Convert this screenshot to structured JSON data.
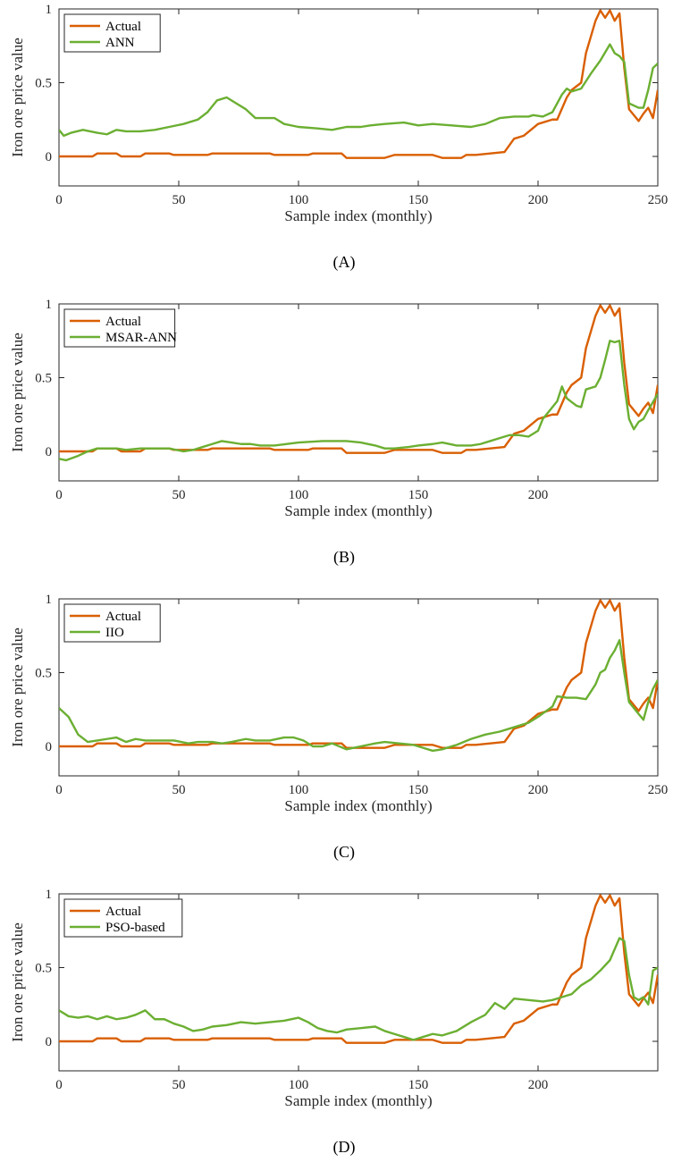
{
  "figure": {
    "colors": {
      "actual": "#D95F02",
      "model": "#6BAF32",
      "axis": "#262626"
    }
  },
  "chart_data": [
    {
      "type": "line",
      "caption": "(A)",
      "xlabel": "Sample index (monthly)",
      "ylabel": "Iron ore price value",
      "xlim": [
        0,
        250
      ],
      "ylim": [
        -0.2,
        1
      ],
      "xticks": [
        0,
        50,
        100,
        150,
        200,
        250
      ],
      "yticks": [
        0,
        0.5,
        1
      ],
      "legend_position": "top-left",
      "series": [
        {
          "name": "Actual",
          "x": [
            0,
            5,
            10,
            14,
            16,
            20,
            24,
            26,
            30,
            34,
            36,
            40,
            46,
            48,
            52,
            56,
            62,
            64,
            70,
            80,
            88,
            90,
            96,
            104,
            106,
            110,
            114,
            118,
            120,
            124,
            130,
            136,
            140,
            146,
            150,
            156,
            160,
            164,
            168,
            170,
            174,
            180,
            186,
            190,
            194,
            200,
            206,
            208,
            212,
            214,
            218,
            220,
            224,
            226,
            228,
            230,
            232,
            234,
            236,
            238,
            242,
            244,
            246,
            248,
            250
          ],
          "y": [
            0,
            0,
            0,
            0,
            0.02,
            0.02,
            0.02,
            0,
            0,
            0,
            0.02,
            0.02,
            0.02,
            0.01,
            0.01,
            0.01,
            0.01,
            0.02,
            0.02,
            0.02,
            0.02,
            0.01,
            0.01,
            0.01,
            0.02,
            0.02,
            0.02,
            0.02,
            -0.01,
            -0.01,
            -0.01,
            -0.01,
            0.01,
            0.01,
            0.01,
            0.01,
            -0.01,
            -0.01,
            -0.01,
            0.01,
            0.01,
            0.02,
            0.03,
            0.12,
            0.14,
            0.22,
            0.25,
            0.25,
            0.4,
            0.45,
            0.5,
            0.7,
            0.92,
            0.99,
            0.94,
            0.99,
            0.92,
            0.97,
            0.6,
            0.32,
            0.24,
            0.29,
            0.33,
            0.26,
            0.45
          ]
        },
        {
          "name": "ANN",
          "x": [
            0,
            2,
            5,
            10,
            16,
            20,
            24,
            28,
            34,
            40,
            46,
            52,
            58,
            62,
            66,
            70,
            74,
            78,
            82,
            90,
            94,
            100,
            108,
            114,
            120,
            126,
            130,
            136,
            144,
            150,
            156,
            164,
            172,
            178,
            184,
            190,
            196,
            198,
            202,
            206,
            210,
            212,
            214,
            218,
            222,
            226,
            230,
            232,
            234,
            236,
            238,
            242,
            244,
            246,
            248,
            250
          ],
          "y": [
            0.18,
            0.14,
            0.16,
            0.18,
            0.16,
            0.15,
            0.18,
            0.17,
            0.17,
            0.18,
            0.2,
            0.22,
            0.25,
            0.3,
            0.38,
            0.4,
            0.36,
            0.32,
            0.26,
            0.26,
            0.22,
            0.2,
            0.19,
            0.18,
            0.2,
            0.2,
            0.21,
            0.22,
            0.23,
            0.21,
            0.22,
            0.21,
            0.2,
            0.22,
            0.26,
            0.27,
            0.27,
            0.28,
            0.27,
            0.3,
            0.42,
            0.46,
            0.44,
            0.46,
            0.56,
            0.65,
            0.76,
            0.7,
            0.68,
            0.64,
            0.36,
            0.33,
            0.33,
            0.45,
            0.6,
            0.63
          ]
        }
      ]
    },
    {
      "type": "line",
      "caption": "(B)",
      "xlabel": "Sample index (monthly)",
      "ylabel": "Iron ore price value",
      "xlim": [
        0,
        250
      ],
      "ylim": [
        -0.2,
        1
      ],
      "xticks": [
        0,
        50,
        100,
        150,
        200
      ],
      "yticks": [
        0,
        0.5,
        1
      ],
      "legend_position": "top-left",
      "series": [
        {
          "name": "Actual",
          "x": [
            0,
            5,
            10,
            14,
            16,
            20,
            24,
            26,
            30,
            34,
            36,
            40,
            46,
            48,
            52,
            56,
            62,
            64,
            70,
            80,
            88,
            90,
            96,
            104,
            106,
            110,
            114,
            118,
            120,
            124,
            130,
            136,
            140,
            146,
            150,
            156,
            160,
            164,
            168,
            170,
            174,
            180,
            186,
            190,
            194,
            200,
            206,
            208,
            212,
            214,
            218,
            220,
            224,
            226,
            228,
            230,
            232,
            234,
            236,
            238,
            242,
            244,
            246,
            248,
            250
          ],
          "y": [
            0,
            0,
            0,
            0,
            0.02,
            0.02,
            0.02,
            0,
            0,
            0,
            0.02,
            0.02,
            0.02,
            0.01,
            0.01,
            0.01,
            0.01,
            0.02,
            0.02,
            0.02,
            0.02,
            0.01,
            0.01,
            0.01,
            0.02,
            0.02,
            0.02,
            0.02,
            -0.01,
            -0.01,
            -0.01,
            -0.01,
            0.01,
            0.01,
            0.01,
            0.01,
            -0.01,
            -0.01,
            -0.01,
            0.01,
            0.01,
            0.02,
            0.03,
            0.12,
            0.14,
            0.22,
            0.25,
            0.25,
            0.4,
            0.45,
            0.5,
            0.7,
            0.92,
            0.99,
            0.94,
            0.99,
            0.92,
            0.97,
            0.6,
            0.32,
            0.24,
            0.29,
            0.33,
            0.26,
            0.45
          ]
        },
        {
          "name": "MSAR-ANN",
          "x": [
            0,
            3,
            8,
            12,
            16,
            20,
            24,
            28,
            34,
            40,
            46,
            52,
            56,
            60,
            64,
            68,
            72,
            76,
            80,
            84,
            90,
            100,
            110,
            120,
            126,
            132,
            136,
            140,
            146,
            150,
            156,
            160,
            166,
            172,
            176,
            180,
            184,
            188,
            192,
            196,
            200,
            202,
            206,
            208,
            210,
            212,
            216,
            218,
            220,
            224,
            226,
            228,
            230,
            232,
            234,
            236,
            238,
            240,
            242,
            244,
            246,
            250
          ],
          "y": [
            -0.05,
            -0.06,
            -0.03,
            0,
            0.02,
            0.02,
            0.02,
            0.01,
            0.02,
            0.02,
            0.02,
            0,
            0.01,
            0.03,
            0.05,
            0.07,
            0.06,
            0.05,
            0.05,
            0.04,
            0.04,
            0.06,
            0.07,
            0.07,
            0.06,
            0.04,
            0.02,
            0.02,
            0.03,
            0.04,
            0.05,
            0.06,
            0.04,
            0.04,
            0.05,
            0.07,
            0.09,
            0.11,
            0.11,
            0.1,
            0.14,
            0.22,
            0.3,
            0.34,
            0.44,
            0.36,
            0.31,
            0.3,
            0.42,
            0.44,
            0.5,
            0.62,
            0.75,
            0.74,
            0.75,
            0.45,
            0.22,
            0.15,
            0.2,
            0.22,
            0.28,
            0.39
          ]
        }
      ]
    },
    {
      "type": "line",
      "caption": "(C)",
      "xlabel": "Sample index (monthly)",
      "ylabel": "Iron ore price value",
      "xlim": [
        0,
        250
      ],
      "ylim": [
        -0.2,
        1
      ],
      "xticks": [
        0,
        50,
        100,
        150,
        200,
        250
      ],
      "yticks": [
        0,
        0.5,
        1
      ],
      "legend_position": "top-left",
      "series": [
        {
          "name": "Actual",
          "x": [
            0,
            5,
            10,
            14,
            16,
            20,
            24,
            26,
            30,
            34,
            36,
            40,
            46,
            48,
            52,
            56,
            62,
            64,
            70,
            80,
            88,
            90,
            96,
            104,
            106,
            110,
            114,
            118,
            120,
            124,
            130,
            136,
            140,
            146,
            150,
            156,
            160,
            164,
            168,
            170,
            174,
            180,
            186,
            190,
            194,
            200,
            206,
            208,
            212,
            214,
            218,
            220,
            224,
            226,
            228,
            230,
            232,
            234,
            236,
            238,
            242,
            244,
            246,
            248,
            250
          ],
          "y": [
            0,
            0,
            0,
            0,
            0.02,
            0.02,
            0.02,
            0,
            0,
            0,
            0.02,
            0.02,
            0.02,
            0.01,
            0.01,
            0.01,
            0.01,
            0.02,
            0.02,
            0.02,
            0.02,
            0.01,
            0.01,
            0.01,
            0.02,
            0.02,
            0.02,
            0.02,
            -0.01,
            -0.01,
            -0.01,
            -0.01,
            0.01,
            0.01,
            0.01,
            0.01,
            -0.01,
            -0.01,
            -0.01,
            0.01,
            0.01,
            0.02,
            0.03,
            0.12,
            0.14,
            0.22,
            0.25,
            0.25,
            0.4,
            0.45,
            0.5,
            0.7,
            0.92,
            0.99,
            0.94,
            0.99,
            0.92,
            0.97,
            0.6,
            0.32,
            0.24,
            0.29,
            0.33,
            0.26,
            0.45
          ]
        },
        {
          "name": "IIO",
          "x": [
            0,
            4,
            8,
            12,
            16,
            20,
            24,
            28,
            32,
            36,
            42,
            48,
            54,
            58,
            64,
            68,
            72,
            78,
            82,
            88,
            94,
            98,
            102,
            106,
            110,
            114,
            120,
            126,
            132,
            136,
            142,
            148,
            152,
            156,
            160,
            166,
            172,
            178,
            184,
            190,
            196,
            200,
            206,
            208,
            212,
            216,
            220,
            224,
            226,
            228,
            230,
            232,
            234,
            236,
            238,
            242,
            244,
            246,
            248,
            250
          ],
          "y": [
            0.26,
            0.2,
            0.08,
            0.03,
            0.04,
            0.05,
            0.06,
            0.03,
            0.05,
            0.04,
            0.04,
            0.04,
            0.02,
            0.03,
            0.03,
            0.02,
            0.03,
            0.05,
            0.04,
            0.04,
            0.06,
            0.06,
            0.04,
            0,
            0,
            0.02,
            -0.02,
            0,
            0.02,
            0.03,
            0.02,
            0.01,
            -0.01,
            -0.03,
            -0.02,
            0.01,
            0.05,
            0.08,
            0.1,
            0.13,
            0.16,
            0.2,
            0.27,
            0.34,
            0.33,
            0.33,
            0.32,
            0.42,
            0.5,
            0.52,
            0.6,
            0.65,
            0.72,
            0.5,
            0.3,
            0.22,
            0.18,
            0.3,
            0.39,
            0.45
          ]
        }
      ]
    },
    {
      "type": "line",
      "caption": "(D)",
      "xlabel": "Sample index (monthly)",
      "ylabel": "Iron ore price value",
      "xlim": [
        0,
        250
      ],
      "ylim": [
        -0.2,
        1
      ],
      "xticks": [
        0,
        50,
        100,
        150,
        200
      ],
      "yticks": [
        0,
        0.5,
        1
      ],
      "legend_position": "top-left",
      "series": [
        {
          "name": "Actual",
          "x": [
            0,
            5,
            10,
            14,
            16,
            20,
            24,
            26,
            30,
            34,
            36,
            40,
            46,
            48,
            52,
            56,
            62,
            64,
            70,
            80,
            88,
            90,
            96,
            104,
            106,
            110,
            114,
            118,
            120,
            124,
            130,
            136,
            140,
            146,
            150,
            156,
            160,
            164,
            168,
            170,
            174,
            180,
            186,
            190,
            194,
            200,
            206,
            208,
            212,
            214,
            218,
            220,
            224,
            226,
            228,
            230,
            232,
            234,
            236,
            238,
            242,
            244,
            246,
            248,
            250
          ],
          "y": [
            0,
            0,
            0,
            0,
            0.02,
            0.02,
            0.02,
            0,
            0,
            0,
            0.02,
            0.02,
            0.02,
            0.01,
            0.01,
            0.01,
            0.01,
            0.02,
            0.02,
            0.02,
            0.02,
            0.01,
            0.01,
            0.01,
            0.02,
            0.02,
            0.02,
            0.02,
            -0.01,
            -0.01,
            -0.01,
            -0.01,
            0.01,
            0.01,
            0.01,
            0.01,
            -0.01,
            -0.01,
            -0.01,
            0.01,
            0.01,
            0.02,
            0.03,
            0.12,
            0.14,
            0.22,
            0.25,
            0.25,
            0.4,
            0.45,
            0.5,
            0.7,
            0.92,
            0.99,
            0.94,
            0.99,
            0.92,
            0.97,
            0.6,
            0.32,
            0.24,
            0.29,
            0.33,
            0.26,
            0.45
          ]
        },
        {
          "name": "PSO-based",
          "x": [
            0,
            4,
            8,
            12,
            16,
            20,
            24,
            28,
            32,
            36,
            40,
            44,
            48,
            52,
            56,
            60,
            64,
            70,
            76,
            82,
            88,
            94,
            100,
            104,
            108,
            112,
            116,
            120,
            126,
            132,
            136,
            140,
            144,
            148,
            152,
            156,
            160,
            166,
            172,
            178,
            182,
            186,
            190,
            196,
            202,
            206,
            210,
            214,
            218,
            222,
            226,
            230,
            234,
            236,
            238,
            240,
            242,
            244,
            246,
            248,
            250
          ],
          "y": [
            0.21,
            0.17,
            0.16,
            0.17,
            0.15,
            0.17,
            0.15,
            0.16,
            0.18,
            0.21,
            0.15,
            0.15,
            0.12,
            0.1,
            0.07,
            0.08,
            0.1,
            0.11,
            0.13,
            0.12,
            0.13,
            0.14,
            0.16,
            0.13,
            0.09,
            0.07,
            0.06,
            0.08,
            0.09,
            0.1,
            0.07,
            0.05,
            0.03,
            0.01,
            0.03,
            0.05,
            0.04,
            0.07,
            0.13,
            0.18,
            0.26,
            0.22,
            0.29,
            0.28,
            0.27,
            0.28,
            0.3,
            0.32,
            0.38,
            0.42,
            0.48,
            0.55,
            0.7,
            0.68,
            0.45,
            0.3,
            0.28,
            0.3,
            0.25,
            0.48,
            0.5
          ]
        }
      ]
    }
  ]
}
